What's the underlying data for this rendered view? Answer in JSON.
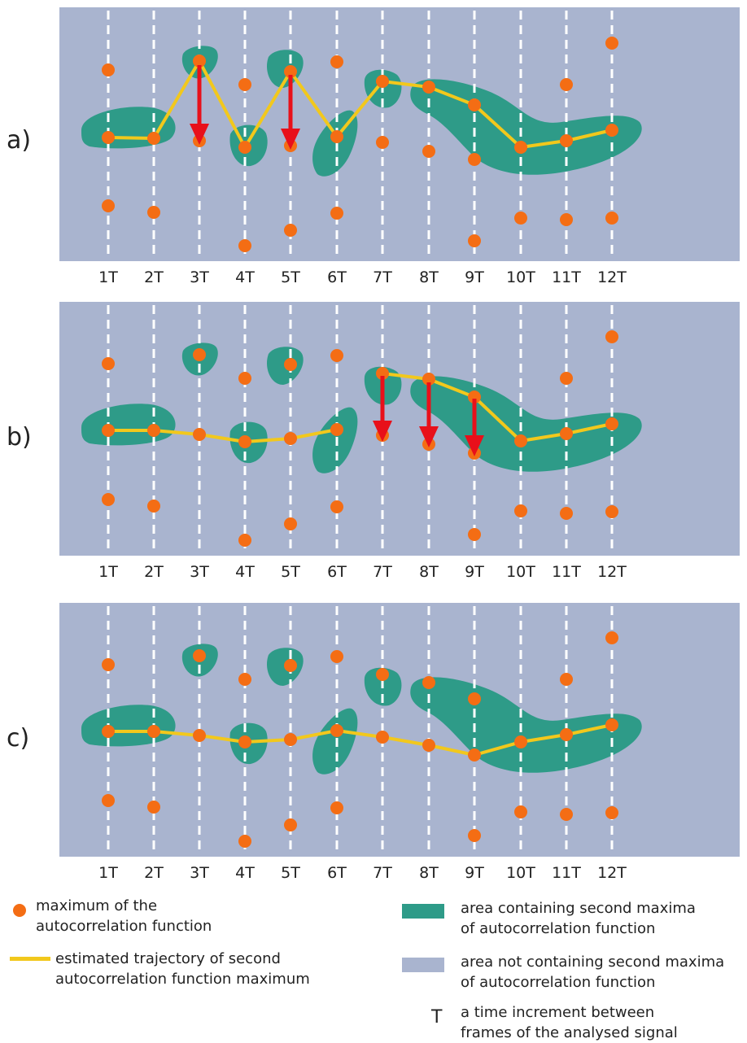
{
  "time_labels": [
    "1T",
    "2T",
    "3T",
    "4T",
    "5T",
    "6T",
    "7T",
    "8T",
    "9T",
    "10T",
    "11T",
    "12T"
  ],
  "colors": {
    "background_area": "#a9b4cf",
    "maxima_area": "#2e9b88",
    "trajectory": "#f2c81c",
    "maximum_point": "#f46d14",
    "shift_arrow": "#e8101a",
    "dashed_line": "#ffffff"
  },
  "panels": [
    {
      "label": "a)"
    },
    {
      "label": "b)"
    },
    {
      "label": "c)"
    }
  ],
  "legend": {
    "maximum": "maximum of the\nautocorrelation function",
    "trajectory": "estimated trajectory of second\nautocorrelation function maximum",
    "area_with": "area containing second maxima\nof autocorrelation function",
    "area_without": "area not containing second maxima\nof autocorrelation function",
    "t_symbol": "T",
    "t_desc": "a time increment between\nframes of the analysed signal"
  }
}
